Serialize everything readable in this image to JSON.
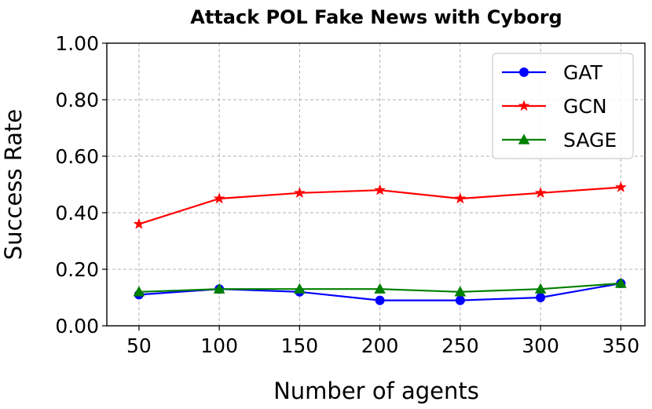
{
  "chart_data": {
    "type": "line",
    "title": "Attack POL Fake News with Cyborg",
    "xlabel": "Number of agents",
    "ylabel": "Success Rate",
    "x": [
      50,
      100,
      150,
      200,
      250,
      300,
      350
    ],
    "x_tick_labels": [
      "50",
      "100",
      "150",
      "200",
      "250",
      "300",
      "350"
    ],
    "y_tick_labels": [
      "0.00",
      "0.20",
      "0.40",
      "0.60",
      "0.80",
      "1.00"
    ],
    "y_ticks": [
      0,
      0.2,
      0.4,
      0.6,
      0.8,
      1.0
    ],
    "xlim": [
      30,
      365
    ],
    "ylim": [
      0,
      1.0
    ],
    "grid": true,
    "legend_position": "top-right",
    "series": [
      {
        "name": "GAT",
        "color": "#0000ff",
        "marker": "circle",
        "values": [
          0.11,
          0.13,
          0.12,
          0.09,
          0.09,
          0.1,
          0.15
        ]
      },
      {
        "name": "GCN",
        "color": "#ff0000",
        "marker": "star",
        "values": [
          0.36,
          0.45,
          0.47,
          0.48,
          0.45,
          0.47,
          0.49
        ]
      },
      {
        "name": "SAGE",
        "color": "#008000",
        "marker": "triangle",
        "values": [
          0.12,
          0.13,
          0.13,
          0.13,
          0.12,
          0.13,
          0.15
        ]
      }
    ]
  }
}
